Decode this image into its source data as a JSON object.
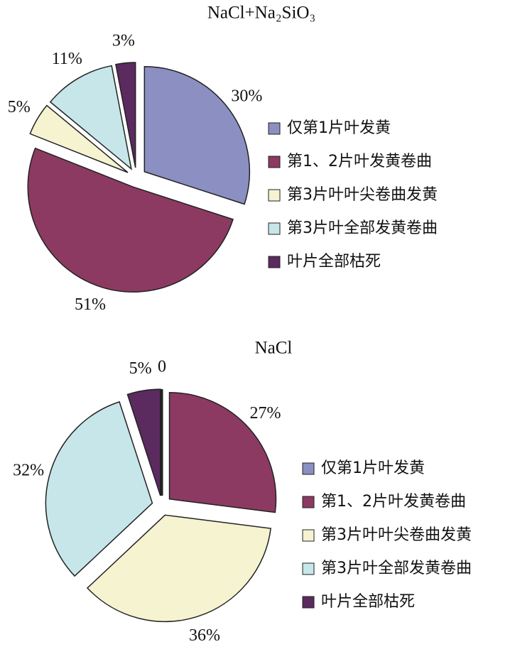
{
  "chart_data": [
    {
      "type": "pie",
      "title": "NaCl+Na₂SiO₃",
      "categories": [
        "仅第1片叶发黄",
        "第1、2片叶发黄卷曲",
        "第3片叶叶尖卷曲发黄",
        "第3片叶全部发黄卷曲",
        "叶片全部枯死"
      ],
      "values": [
        30,
        51,
        5,
        11,
        3
      ],
      "value_labels": [
        "30%",
        "51%",
        "5%",
        "11%",
        "3%"
      ],
      "colors": [
        "#8b8fc2",
        "#8c3a62",
        "#f5f3d0",
        "#c6e6ea",
        "#5b2a5f"
      ]
    },
    {
      "type": "pie",
      "title": "NaCl",
      "categories": [
        "仅第1片叶发黄",
        "第1、2片叶发黄卷曲",
        "第3片叶叶尖卷曲发黄",
        "第3片叶全部发黄卷曲",
        "叶片全部枯死"
      ],
      "values": [
        0,
        27,
        36,
        32,
        5
      ],
      "value_labels": [
        "0",
        "27%",
        "36%",
        "32%",
        "5%"
      ],
      "colors": [
        "#8b8fc2",
        "#8c3a62",
        "#f5f3d0",
        "#c6e6ea",
        "#5b2a5f"
      ]
    }
  ]
}
